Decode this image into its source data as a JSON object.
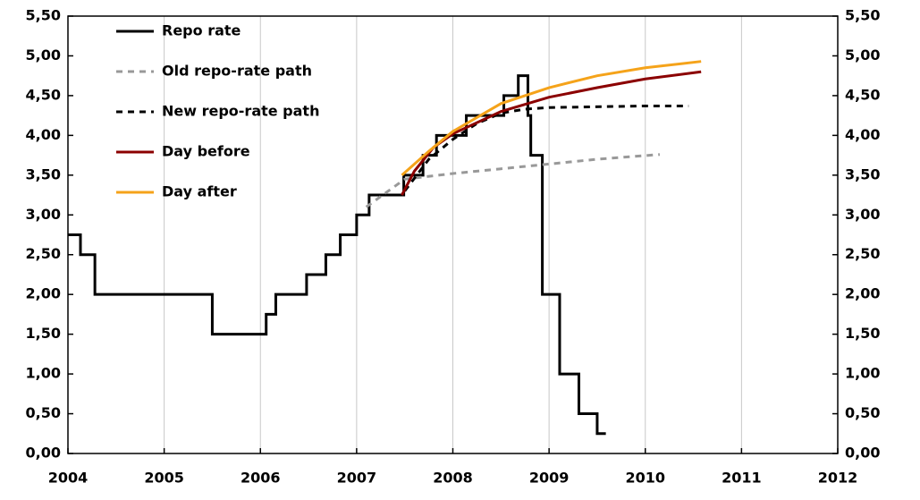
{
  "chart_data": {
    "type": "line",
    "xlim": [
      2004,
      2012
    ],
    "xticks": [
      2004,
      2005,
      2006,
      2007,
      2008,
      2009,
      2010,
      2011,
      2012
    ],
    "ylim": [
      0,
      5.5
    ],
    "yticks": [
      {
        "value": 0,
        "label": "0,00"
      },
      {
        "value": 0.5,
        "label": "0,50"
      },
      {
        "value": 1,
        "label": "1,00"
      },
      {
        "value": 1.5,
        "label": "1,50"
      },
      {
        "value": 2,
        "label": "2,00"
      },
      {
        "value": 2.5,
        "label": "2,50"
      },
      {
        "value": 3,
        "label": "3,00"
      },
      {
        "value": 3.5,
        "label": "3,50"
      },
      {
        "value": 4,
        "label": "4,00"
      },
      {
        "value": 4.5,
        "label": "4,50"
      },
      {
        "value": 5,
        "label": "5,00"
      },
      {
        "value": 5.5,
        "label": "5,50"
      }
    ],
    "grid": "x",
    "legend": "upper left",
    "series": [
      {
        "name": "Repo rate",
        "color": "#000000",
        "dash": "solid",
        "x": [
          2004,
          2004.13,
          2004.13,
          2004.28,
          2004.28,
          2005.5,
          2005.5,
          2006.06,
          2006.06,
          2006.16,
          2006.16,
          2006.48,
          2006.48,
          2006.68,
          2006.68,
          2006.83,
          2006.83,
          2007.0,
          2007.0,
          2007.13,
          2007.13,
          2007.49,
          2007.49,
          2007.69,
          2007.69,
          2007.83,
          2007.83,
          2008.14,
          2008.14,
          2008.53,
          2008.53,
          2008.68,
          2008.68,
          2008.78,
          2008.78,
          2008.81,
          2008.81,
          2008.93,
          2008.93,
          2009.11,
          2009.11,
          2009.31,
          2009.31,
          2009.5,
          2009.5,
          2009.59
        ],
        "values": [
          2.75,
          2.75,
          2.5,
          2.5,
          2,
          2,
          1.5,
          1.5,
          1.75,
          1.75,
          2,
          2,
          2.25,
          2.25,
          2.5,
          2.5,
          2.75,
          2.75,
          3,
          3,
          3.25,
          3.25,
          3.5,
          3.5,
          3.75,
          3.75,
          4,
          4,
          4.25,
          4.25,
          4.5,
          4.5,
          4.75,
          4.75,
          4.25,
          4.25,
          3.75,
          3.75,
          2,
          2,
          1,
          1,
          0.5,
          0.5,
          0.25,
          0.25
        ]
      },
      {
        "name": "Old repo-rate path",
        "color": "#999999",
        "dash": "dashed",
        "x": [
          2007.1,
          2007.5,
          2008,
          2008.5,
          2009,
          2009.5,
          2010.15
        ],
        "values": [
          3.1,
          3.45,
          3.52,
          3.58,
          3.64,
          3.7,
          3.76
        ]
      },
      {
        "name": "New repo-rate path",
        "color": "#000000",
        "dash": "dashed",
        "x": [
          2007.5,
          2007.75,
          2008,
          2008.25,
          2008.5,
          2008.75,
          2009,
          2010,
          2010.45
        ],
        "values": [
          3.3,
          3.7,
          3.95,
          4.15,
          4.28,
          4.33,
          4.35,
          4.37,
          4.37
        ]
      },
      {
        "name": "Day before",
        "color": "#8b0000",
        "dash": "solid",
        "x": [
          2007.47,
          2007.6,
          2007.8,
          2008,
          2008.5,
          2009,
          2009.5,
          2010,
          2010.58
        ],
        "values": [
          3.25,
          3.55,
          3.85,
          4.02,
          4.3,
          4.48,
          4.6,
          4.71,
          4.8
        ]
      },
      {
        "name": "Day after",
        "color": "#f5a31a",
        "dash": "solid",
        "x": [
          2007.47,
          2007.75,
          2008,
          2008.5,
          2009,
          2009.5,
          2010,
          2010.58
        ],
        "values": [
          3.5,
          3.8,
          4.05,
          4.4,
          4.6,
          4.75,
          4.85,
          4.93
        ]
      }
    ]
  }
}
